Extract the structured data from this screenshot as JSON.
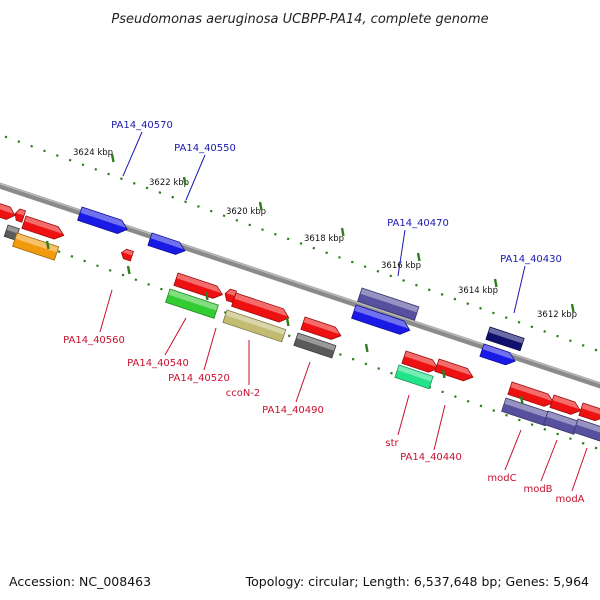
{
  "title": "Pseudomonas aeruginosa UCBPP-PA14, complete genome",
  "footer": {
    "accession": "Accession: NC_008463",
    "summary": "Topology: circular; Length: 6,537,648 bp; Genes: 5,964"
  },
  "ticks": [
    "3624 kbp",
    "3622 kbp",
    "3620 kbp",
    "3618 kbp",
    "3616 kbp",
    "3614 kbp",
    "3612 kbp"
  ],
  "labels_top": [
    "PA14_40570",
    "PA14_40550",
    "PA14_40470",
    "PA14_40430"
  ],
  "labels_bottom": [
    "PA14_40560",
    "PA14_40540",
    "PA14_40520",
    "ccoN-2",
    "PA14_40490",
    "str",
    "PA14_40440",
    "modC",
    "modB",
    "modA"
  ],
  "colors": {
    "red": "#ee1111",
    "blue": "#1a1ae6",
    "navy": "#10106e",
    "slate": "#56509e",
    "green": "#33cc33",
    "olive": "#c2bc72",
    "orange": "#f29a0e",
    "gray": "#5a5a5a",
    "mint": "#22e28a",
    "top_label": "#1a1ab0",
    "bottom_label": "#c8102e",
    "tick_green": "#2f7d1e"
  }
}
